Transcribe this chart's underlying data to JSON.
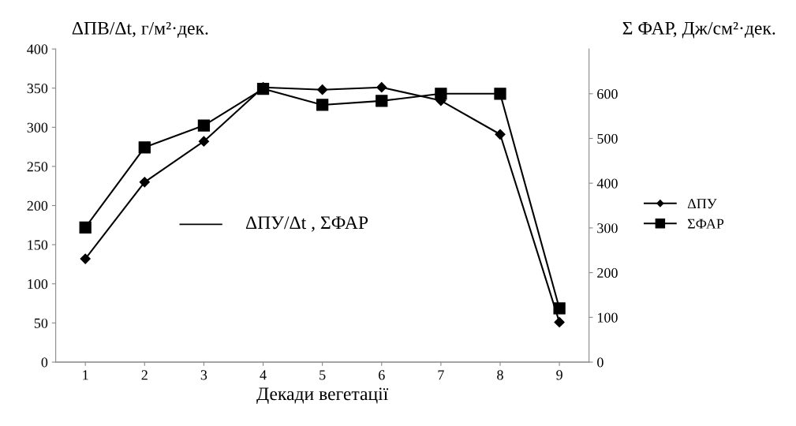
{
  "chart_data": {
    "type": "line",
    "categories": [
      "1",
      "2",
      "3",
      "4",
      "5",
      "6",
      "7",
      "8",
      "9"
    ],
    "xlabel": "Декади вегетації",
    "ylabel": "ΔПВ/Δt, г/м²·дек.",
    "y2label": "Σ ФАР, Дж/см²·дек.",
    "series": [
      {
        "name": "ΔПУ",
        "color": "#000000",
        "marker": "diamond",
        "values": [
          132,
          230,
          282,
          351,
          348,
          351,
          334,
          291,
          51
        ]
      },
      {
        "name": "ΣФАР",
        "color": "#000000",
        "marker": "square",
        "axis": "y2",
        "values": [
          301,
          480,
          529,
          611,
          575,
          584,
          600,
          600,
          120
        ]
      }
    ],
    "ylim": [
      0,
      400
    ],
    "yticks": [
      0,
      50,
      100,
      150,
      200,
      250,
      300,
      350,
      400
    ],
    "y2lim": [
      0,
      700
    ],
    "y2ticks": [
      0,
      100,
      200,
      300,
      400,
      500,
      600
    ],
    "annotations": [
      "ΔПУ/Δt , ΣФАР"
    ],
    "legend": "right",
    "grid": false,
    "line_style": "solid"
  }
}
